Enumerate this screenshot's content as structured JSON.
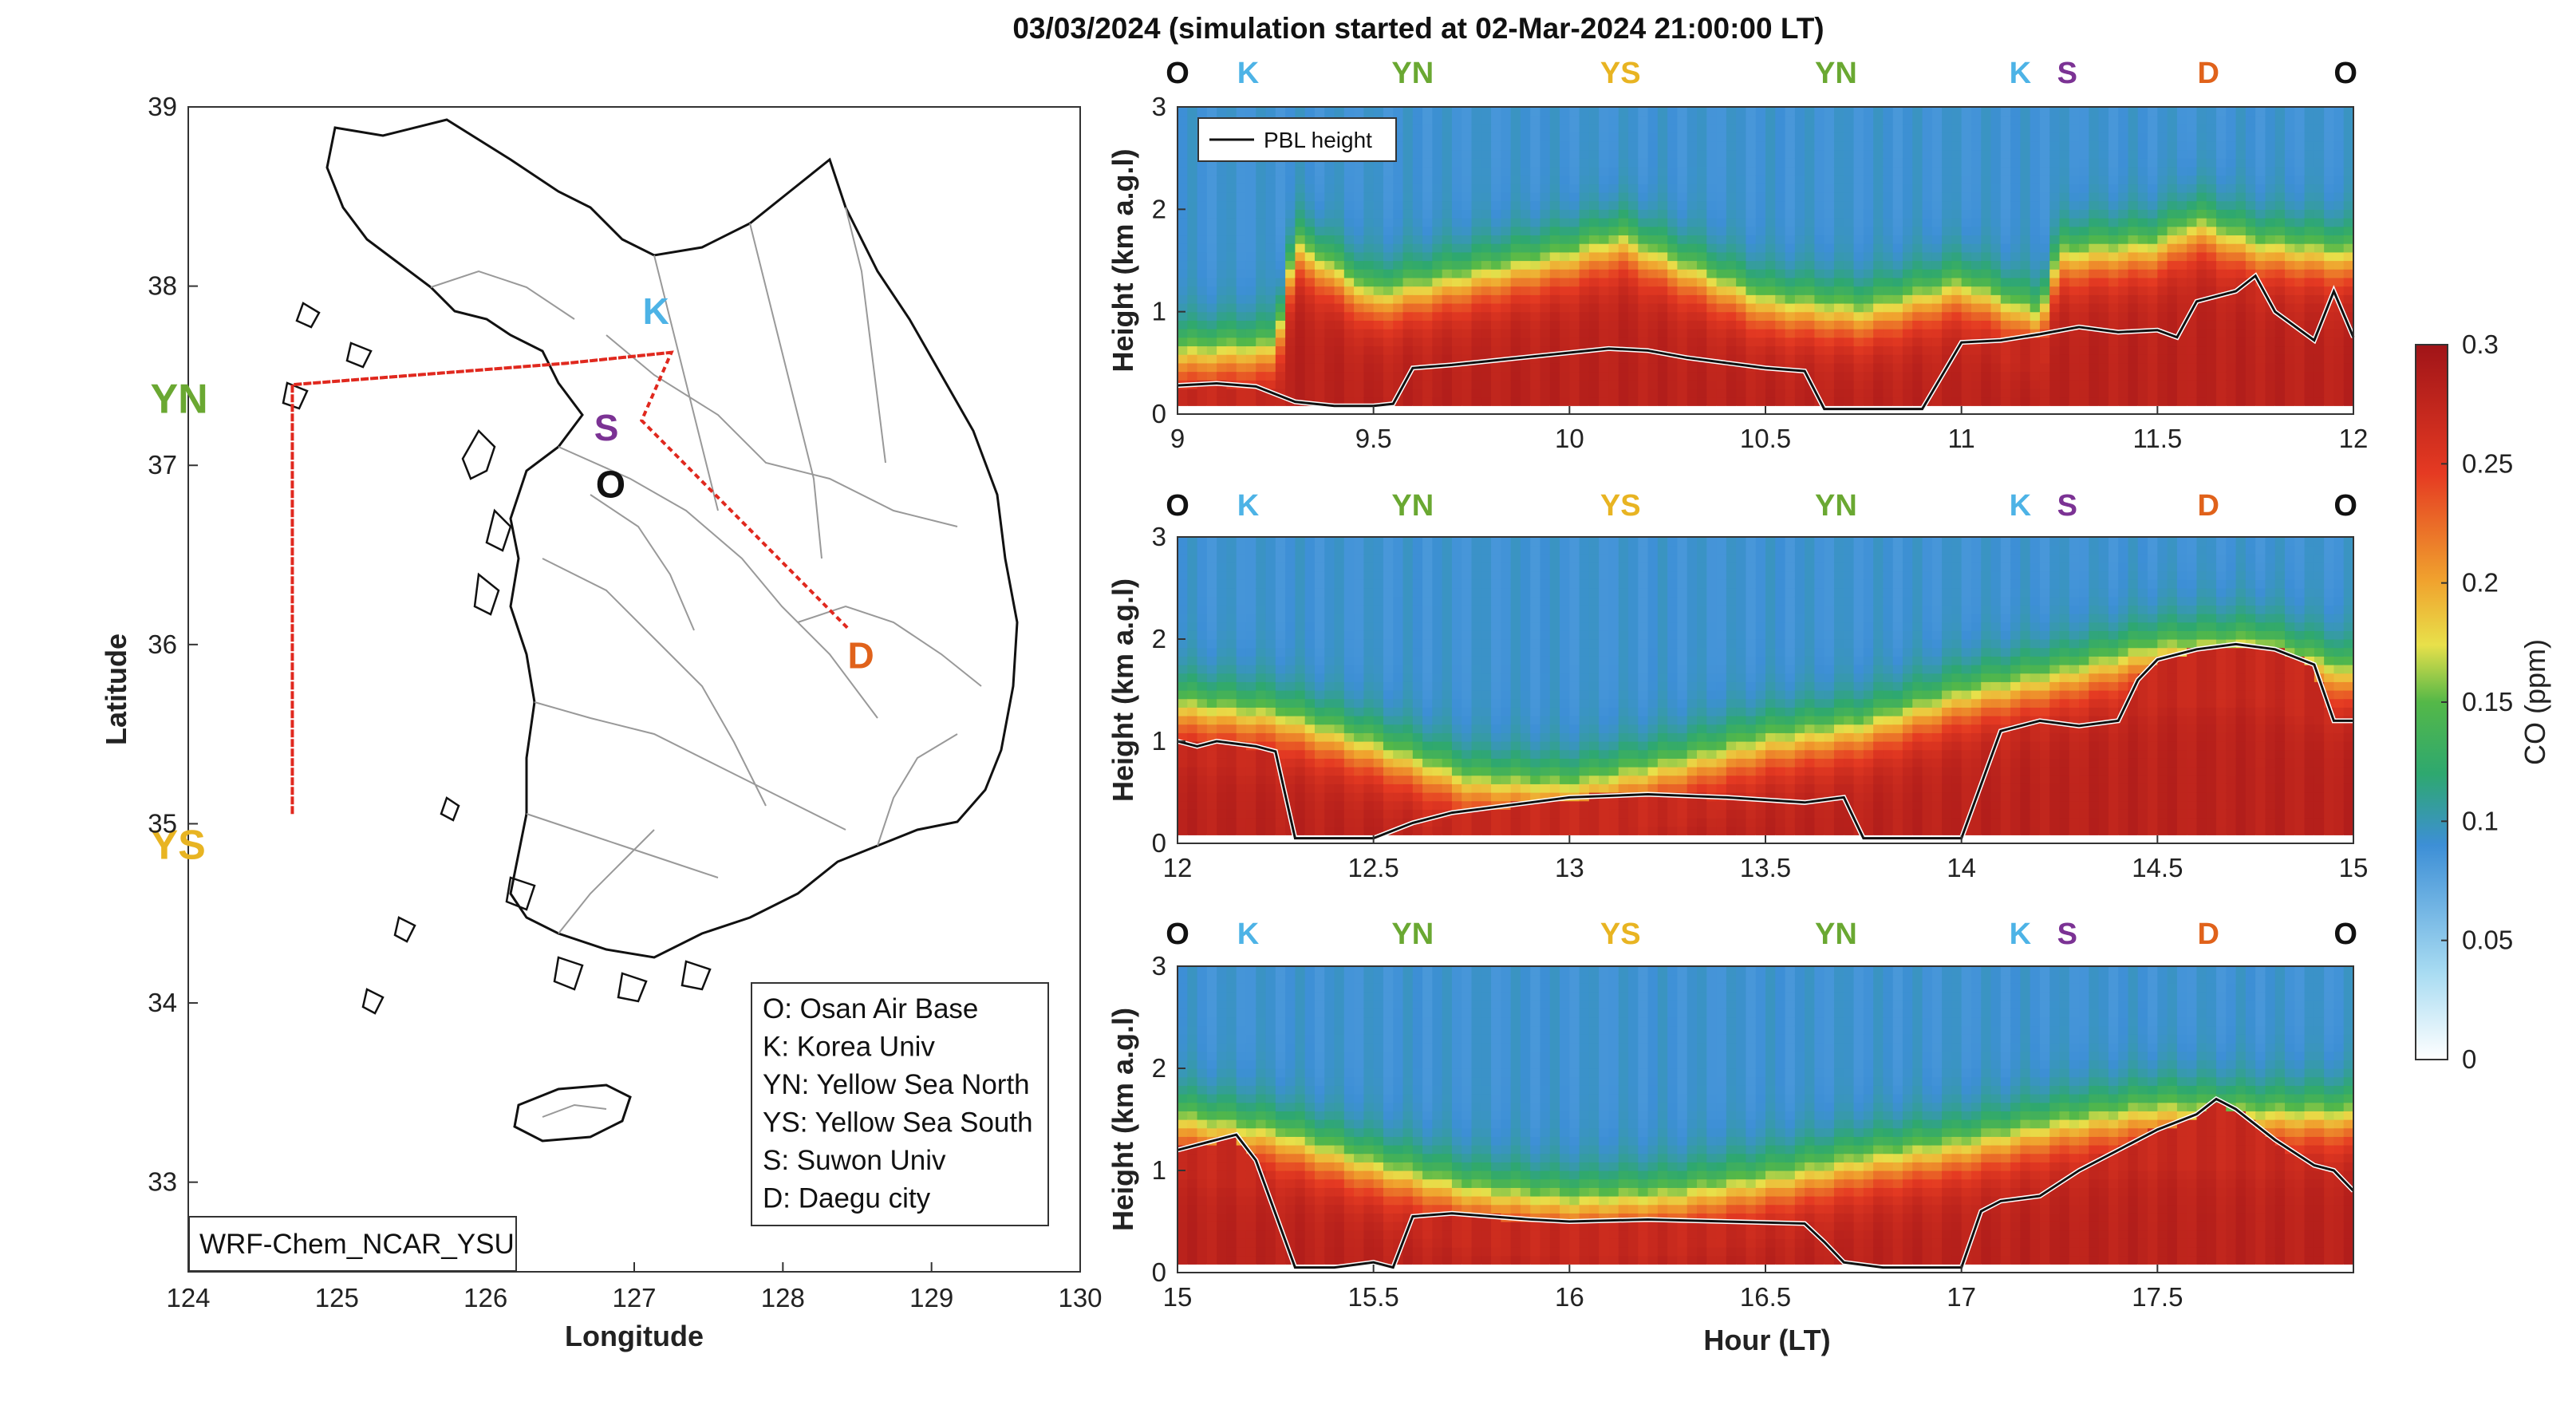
{
  "colors": {
    "O": "#111111",
    "K": "#4db3e6",
    "YN": "#6aa832",
    "YS": "#e8b422",
    "S": "#7b3294",
    "D": "#e0621b",
    "route": "#e0281e",
    "colormap": [
      "#ffffff",
      "#a9dcf2",
      "#3d8fd6",
      "#2ea86f",
      "#54b848",
      "#e8e04a",
      "#f0a22e",
      "#e53a22",
      "#a01418"
    ]
  },
  "map": {
    "xlabel": "Longitude",
    "ylabel": "Latitude",
    "xlim": [
      124,
      130
    ],
    "ylim": [
      32.5,
      39
    ],
    "xticks": [
      "124",
      "125",
      "126",
      "127",
      "128",
      "129",
      "130"
    ],
    "yticks": [
      "33",
      "34",
      "35",
      "36",
      "37",
      "38",
      "39"
    ],
    "model_label": "WRF-Chem_NCAR_YSU",
    "sites": [
      {
        "code": "K",
        "lon": 127.1,
        "lat": 37.78
      },
      {
        "code": "YN",
        "lon": 124.55,
        "lat": 37.4
      },
      {
        "code": "S",
        "lon": 126.87,
        "lat": 37.3
      },
      {
        "code": "O",
        "lon": 126.87,
        "lat": 37.08
      },
      {
        "code": "YS",
        "lon": 124.55,
        "lat": 35.0
      },
      {
        "code": "D",
        "lon": 128.5,
        "lat": 35.94
      }
    ],
    "route": [
      {
        "lon": 127.25,
        "lat": 37.63
      },
      {
        "lon": 126.55,
        "lat": 37.57
      },
      {
        "lon": 124.7,
        "lat": 37.45
      },
      {
        "lon": 124.7,
        "lat": 35.05
      },
      {
        "lon": 124.7,
        "lat": 37.45
      },
      {
        "lon": 126.55,
        "lat": 37.57
      },
      {
        "lon": 127.25,
        "lat": 37.63
      },
      {
        "lon": 127.05,
        "lat": 37.25
      },
      {
        "lon": 128.45,
        "lat": 36.08
      }
    ],
    "legend": [
      "O: Osan Air Base",
      "K: Korea Univ",
      "YN: Yellow Sea North",
      "YS: Yellow Sea South",
      "S: Suwon Univ",
      "D: Daegu city"
    ]
  },
  "curtain": {
    "title": "03/03/2024 (simulation started at 02-Mar-2024 21:00:00 LT)",
    "ylabel": "Height (km a.g.l)",
    "xlabel": "Hour (LT)",
    "pbl_legend": "PBL height",
    "colorbar_label": "CO (ppm)",
    "colorbar_ticks": [
      "0",
      "0.05",
      "0.1",
      "0.15",
      "0.2",
      "0.25",
      "0.3"
    ],
    "clim": [
      0,
      0.3
    ],
    "ylim": [
      0,
      3
    ],
    "yticks": [
      "0",
      "1",
      "2",
      "3"
    ],
    "site_sequence": [
      "O",
      "K",
      "YN",
      "YS",
      "YN",
      "K",
      "S",
      "D",
      "O"
    ]
  },
  "chart_data": [
    {
      "type": "heatmap",
      "title": "03/03/2024 (simulation started at 02-Mar-2024 21:00:00 LT)",
      "xlabel": "",
      "ylabel": "Height (km a.g.l)",
      "xlim": [
        9,
        12
      ],
      "ylim": [
        0,
        3
      ],
      "xticks": [
        "9",
        "9.5",
        "10",
        "10.5",
        "11",
        "11.5",
        "12"
      ],
      "site_hours": [
        9.0,
        9.18,
        9.6,
        10.13,
        10.68,
        11.15,
        11.27,
        11.63,
        11.98
      ],
      "pbl_height": {
        "x": [
          9.0,
          9.1,
          9.2,
          9.3,
          9.4,
          9.5,
          9.55,
          9.6,
          9.7,
          9.8,
          9.9,
          10.0,
          10.1,
          10.2,
          10.3,
          10.4,
          10.5,
          10.6,
          10.65,
          10.7,
          10.8,
          10.9,
          11.0,
          11.1,
          11.2,
          11.3,
          11.4,
          11.5,
          11.55,
          11.6,
          11.7,
          11.75,
          11.8,
          11.9,
          11.95,
          12.0
        ],
        "y": [
          0.28,
          0.3,
          0.27,
          0.12,
          0.08,
          0.08,
          0.1,
          0.45,
          0.48,
          0.52,
          0.56,
          0.6,
          0.64,
          0.62,
          0.55,
          0.5,
          0.45,
          0.42,
          0.05,
          0.05,
          0.05,
          0.05,
          0.7,
          0.72,
          0.78,
          0.85,
          0.8,
          0.82,
          0.75,
          1.1,
          1.2,
          1.35,
          1.0,
          0.72,
          1.2,
          0.75
        ]
      },
      "co_columns": {
        "x": [
          9.0,
          9.25,
          9.3,
          9.5,
          9.75,
          10.0,
          10.13,
          10.25,
          10.5,
          10.75,
          11.0,
          11.1,
          11.2,
          11.25,
          11.5,
          11.6,
          11.75,
          12.0
        ],
        "co_top_km": [
          0.55,
          0.6,
          1.6,
          1.1,
          1.3,
          1.5,
          1.65,
          1.45,
          1.05,
          0.95,
          1.2,
          1.05,
          0.9,
          1.5,
          1.6,
          1.8,
          1.6,
          1.5
        ]
      }
    },
    {
      "type": "heatmap",
      "title": "",
      "xlabel": "",
      "ylabel": "Height (km a.g.l)",
      "xlim": [
        12,
        15
      ],
      "ylim": [
        0,
        3
      ],
      "xticks": [
        "12",
        "12.5",
        "13",
        "13.5",
        "14",
        "14.5",
        "15"
      ],
      "site_hours": [
        12.0,
        12.18,
        12.6,
        13.13,
        13.68,
        14.15,
        14.27,
        14.63,
        14.98
      ],
      "pbl_height": {
        "x": [
          12.0,
          12.05,
          12.1,
          12.2,
          12.25,
          12.3,
          12.4,
          12.5,
          12.6,
          12.7,
          12.8,
          12.9,
          13.0,
          13.2,
          13.4,
          13.6,
          13.7,
          13.75,
          13.9,
          14.0,
          14.1,
          14.2,
          14.3,
          14.4,
          14.45,
          14.5,
          14.6,
          14.7,
          14.8,
          14.9,
          14.95,
          15.0
        ],
        "y": [
          1.0,
          0.95,
          1.0,
          0.95,
          0.9,
          0.05,
          0.05,
          0.05,
          0.2,
          0.3,
          0.35,
          0.4,
          0.45,
          0.48,
          0.45,
          0.4,
          0.45,
          0.05,
          0.05,
          0.05,
          1.1,
          1.2,
          1.15,
          1.2,
          1.6,
          1.8,
          1.9,
          1.95,
          1.9,
          1.75,
          1.2,
          1.2
        ]
      },
      "co_columns": {
        "x": [
          12.0,
          12.25,
          12.5,
          12.75,
          13.0,
          13.25,
          13.5,
          13.75,
          14.0,
          14.25,
          14.5,
          14.75,
          15.0
        ],
        "co_top_km": [
          1.3,
          1.2,
          0.9,
          0.55,
          0.5,
          0.7,
          0.95,
          1.1,
          1.4,
          1.6,
          1.85,
          1.9,
          1.6
        ]
      }
    },
    {
      "type": "heatmap",
      "title": "",
      "xlabel": "Hour (LT)",
      "ylabel": "Height (km a.g.l)",
      "xlim": [
        15,
        18
      ],
      "ylim": [
        0,
        3
      ],
      "xticks": [
        "15",
        "15.5",
        "16",
        "16.5",
        "17",
        "17.5"
      ],
      "site_hours": [
        15.0,
        15.18,
        15.6,
        16.13,
        16.68,
        17.15,
        17.27,
        17.63,
        17.98
      ],
      "pbl_height": {
        "x": [
          15.0,
          15.05,
          15.1,
          15.15,
          15.2,
          15.3,
          15.4,
          15.5,
          15.55,
          15.6,
          15.7,
          15.8,
          15.9,
          16.0,
          16.2,
          16.4,
          16.6,
          16.65,
          16.7,
          16.8,
          16.9,
          16.95,
          17.0,
          17.05,
          17.1,
          17.2,
          17.3,
          17.4,
          17.5,
          17.6,
          17.65,
          17.7,
          17.8,
          17.9,
          17.95,
          18.0
        ],
        "y": [
          1.2,
          1.25,
          1.3,
          1.35,
          1.1,
          0.05,
          0.05,
          0.1,
          0.05,
          0.55,
          0.58,
          0.55,
          0.52,
          0.5,
          0.52,
          0.5,
          0.48,
          0.3,
          0.1,
          0.05,
          0.05,
          0.05,
          0.05,
          0.6,
          0.7,
          0.75,
          1.0,
          1.2,
          1.4,
          1.55,
          1.7,
          1.6,
          1.3,
          1.05,
          1.0,
          0.8
        ]
      },
      "co_columns": {
        "x": [
          15.0,
          15.25,
          15.5,
          15.75,
          16.0,
          16.25,
          16.5,
          16.75,
          17.0,
          17.25,
          17.5,
          17.75,
          18.0
        ],
        "co_top_km": [
          1.45,
          1.3,
          1.0,
          0.75,
          0.65,
          0.7,
          0.85,
          1.05,
          1.2,
          1.4,
          1.55,
          1.5,
          1.5
        ]
      }
    }
  ]
}
